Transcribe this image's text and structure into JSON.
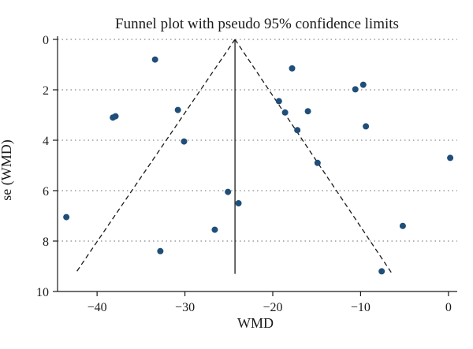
{
  "chart_data": {
    "type": "scatter",
    "title": "Funnel plot with pseudo 95% confidence limits",
    "xlabel": "WMD",
    "ylabel": "se (WMD)",
    "xlim": [
      -44.5,
      1.0
    ],
    "ylim": [
      10.0,
      0.0
    ],
    "y_inverted": true,
    "xticks": [
      -40,
      -30,
      -20,
      -10,
      0
    ],
    "yticks": [
      0,
      2,
      4,
      6,
      8,
      10
    ],
    "grid": "horizontal-dotted",
    "pooled_estimate": -24.3,
    "pooled_line_range": [
      0,
      9.3
    ],
    "pseudo_ci_lines": [
      {
        "from": [
          -24.3,
          0
        ],
        "to": [
          -42.4,
          9.25
        ]
      },
      {
        "from": [
          -24.3,
          0
        ],
        "to": [
          -6.5,
          9.25
        ]
      }
    ],
    "points": [
      {
        "x": -33.4,
        "y": 0.8
      },
      {
        "x": -17.8,
        "y": 1.15
      },
      {
        "x": -10.6,
        "y": 1.98
      },
      {
        "x": -9.7,
        "y": 1.8
      },
      {
        "x": -19.3,
        "y": 2.45
      },
      {
        "x": -18.6,
        "y": 2.9
      },
      {
        "x": -30.8,
        "y": 2.8
      },
      {
        "x": -16.0,
        "y": 2.85
      },
      {
        "x": -38.2,
        "y": 3.1
      },
      {
        "x": -37.9,
        "y": 3.05
      },
      {
        "x": -9.4,
        "y": 3.45
      },
      {
        "x": -17.2,
        "y": 3.6
      },
      {
        "x": -30.1,
        "y": 4.05
      },
      {
        "x": 0.2,
        "y": 4.7
      },
      {
        "x": -14.9,
        "y": 4.9
      },
      {
        "x": -25.1,
        "y": 6.05
      },
      {
        "x": -23.9,
        "y": 6.5
      },
      {
        "x": -43.5,
        "y": 7.05
      },
      {
        "x": -5.2,
        "y": 7.4
      },
      {
        "x": -26.6,
        "y": 7.55
      },
      {
        "x": -32.8,
        "y": 8.4
      },
      {
        "x": -7.6,
        "y": 9.2
      }
    ],
    "colors": {
      "points": "#1f4e79",
      "lines": "#1a1a1a",
      "grid": "#888888"
    }
  }
}
